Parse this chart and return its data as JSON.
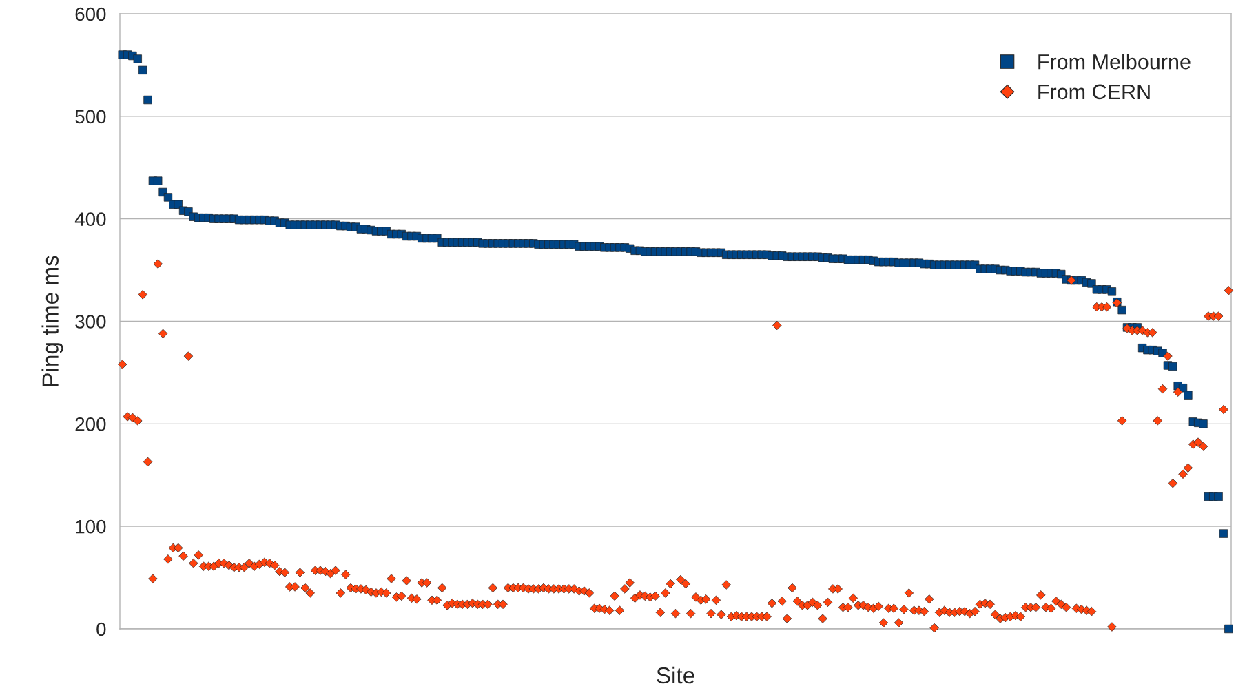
{
  "chart_data": {
    "type": "scatter",
    "xlabel": "Site",
    "ylabel": "Ping time ms",
    "categories": [
      null,
      null,
      null,
      null,
      null,
      null,
      null,
      null,
      null,
      null,
      null,
      null,
      null,
      null,
      null,
      null,
      null,
      null,
      null,
      null,
      null,
      null,
      null,
      null,
      null,
      null,
      null,
      null,
      null,
      null,
      null,
      null,
      null,
      null,
      null,
      null,
      null,
      null,
      null,
      null,
      null,
      null,
      null,
      null,
      null,
      null,
      null,
      null,
      null,
      null,
      null,
      null,
      null,
      null,
      null,
      null,
      null,
      null,
      null,
      null,
      null,
      null,
      null,
      null,
      null,
      null,
      null,
      null,
      null,
      null,
      null,
      null,
      null,
      null,
      null,
      null,
      null,
      null,
      null,
      null,
      null,
      null,
      null,
      null,
      null,
      null,
      null,
      null,
      null,
      null,
      null,
      null,
      null,
      null,
      null,
      null,
      null,
      null,
      null,
      null,
      null,
      null,
      null,
      null,
      null,
      null,
      null,
      null,
      null,
      null,
      null,
      null,
      null,
      null,
      null,
      null,
      null,
      null,
      null,
      null,
      null,
      null,
      null,
      null,
      null,
      null,
      null,
      null,
      null,
      null,
      null,
      null,
      null,
      null,
      null,
      null,
      null,
      null,
      null,
      null,
      null,
      null,
      null,
      null,
      null,
      null,
      null,
      null,
      null,
      null,
      null,
      null,
      null,
      null,
      null,
      null,
      null,
      null,
      null,
      null,
      null,
      null,
      null,
      null,
      null,
      null,
      null,
      null,
      null,
      null,
      null,
      null,
      null,
      null,
      null,
      null,
      null,
      null,
      null,
      null,
      null,
      null,
      null,
      null,
      null,
      null,
      null,
      null,
      null,
      null,
      null,
      null,
      null,
      null,
      null,
      null,
      null,
      null,
      null,
      null,
      null,
      null,
      null,
      null,
      null,
      null,
      null,
      null,
      null,
      null,
      null,
      null,
      null,
      null,
      null,
      null,
      null,
      null,
      null
    ],
    "series": [
      {
        "name": "From Melbourne",
        "color": "#004586",
        "marker": "square",
        "values": [
          560,
          560,
          559,
          556,
          545,
          516,
          437,
          437,
          426,
          421,
          414,
          414,
          408,
          407,
          402,
          401,
          401,
          401,
          400,
          400,
          400,
          400,
          400,
          399,
          399,
          399,
          399,
          399,
          399,
          398,
          398,
          396,
          396,
          394,
          394,
          394,
          394,
          394,
          394,
          394,
          394,
          394,
          394,
          393,
          393,
          392,
          392,
          390,
          390,
          389,
          388,
          388,
          388,
          385,
          385,
          385,
          383,
          383,
          383,
          381,
          381,
          381,
          381,
          377,
          377,
          377,
          377,
          377,
          377,
          377,
          377,
          376,
          376,
          376,
          376,
          376,
          376,
          376,
          376,
          376,
          376,
          376,
          375,
          375,
          375,
          375,
          375,
          375,
          375,
          375,
          373,
          373,
          373,
          373,
          373,
          372,
          372,
          372,
          372,
          372,
          371,
          369,
          369,
          368,
          368,
          368,
          368,
          368,
          368,
          368,
          368,
          368,
          368,
          368,
          367,
          367,
          367,
          367,
          367,
          365,
          365,
          365,
          365,
          365,
          365,
          365,
          365,
          365,
          364,
          364,
          364,
          363,
          363,
          363,
          363,
          363,
          363,
          363,
          362,
          362,
          361,
          361,
          361,
          360,
          360,
          360,
          360,
          360,
          359,
          358,
          358,
          358,
          358,
          357,
          357,
          357,
          357,
          357,
          356,
          356,
          355,
          355,
          355,
          355,
          355,
          355,
          355,
          355,
          355,
          351,
          351,
          351,
          351,
          350,
          350,
          349,
          349,
          349,
          348,
          348,
          348,
          347,
          347,
          347,
          347,
          346,
          341,
          340,
          340,
          340,
          338,
          337,
          331,
          331,
          331,
          329,
          319,
          311,
          294,
          294,
          294,
          274,
          272,
          272,
          271,
          269,
          257,
          256,
          237,
          235,
          228,
          202,
          201,
          200,
          129,
          129,
          129,
          93,
          0
        ]
      },
      {
        "name": "From CERN",
        "color": "#ff420e",
        "marker": "diamond",
        "values": [
          258,
          207,
          206,
          203,
          326,
          163,
          49,
          356,
          288,
          68,
          79,
          79,
          71,
          266,
          64,
          72,
          61,
          61,
          61,
          64,
          64,
          62,
          60,
          60,
          60,
          64,
          61,
          63,
          65,
          64,
          62,
          56,
          55,
          41,
          41,
          55,
          40,
          35,
          57,
          57,
          56,
          54,
          57,
          35,
          53,
          40,
          39,
          39,
          38,
          36,
          35,
          36,
          35,
          49,
          31,
          32,
          47,
          30,
          29,
          45,
          45,
          28,
          28,
          40,
          23,
          25,
          24,
          24,
          24,
          25,
          24,
          24,
          24,
          40,
          24,
          24,
          40,
          40,
          40,
          40,
          39,
          39,
          39,
          40,
          39,
          39,
          39,
          39,
          39,
          39,
          37,
          37,
          35,
          20,
          20,
          19,
          18,
          32,
          18,
          39,
          45,
          30,
          33,
          32,
          31,
          32,
          16,
          35,
          44,
          15,
          48,
          44,
          15,
          31,
          28,
          29,
          15,
          28,
          14,
          43,
          12,
          13,
          12,
          12,
          12,
          12,
          12,
          12,
          25,
          296,
          27,
          10,
          40,
          27,
          23,
          23,
          26,
          23,
          10,
          26,
          39,
          39,
          21,
          21,
          30,
          23,
          23,
          21,
          20,
          22,
          6,
          20,
          20,
          6,
          19,
          35,
          18,
          18,
          17,
          29,
          1,
          16,
          18,
          16,
          16,
          17,
          17,
          15,
          17,
          24,
          25,
          24,
          14,
          10,
          11,
          12,
          13,
          12,
          21,
          21,
          21,
          33,
          21,
          20,
          27,
          24,
          21,
          340,
          20,
          19,
          18,
          17,
          314,
          314,
          314,
          2,
          318,
          203,
          293,
          291,
          291,
          291,
          289,
          289,
          203,
          234,
          266,
          142,
          231,
          151,
          157,
          180,
          182,
          178,
          305,
          305,
          305,
          214,
          330
        ]
      }
    ],
    "ylim": [
      0,
      600
    ],
    "yticks": [
      0,
      100,
      200,
      300,
      400,
      500,
      600
    ],
    "grid": "y",
    "legend": "top right",
    "tick_labels": "y"
  }
}
